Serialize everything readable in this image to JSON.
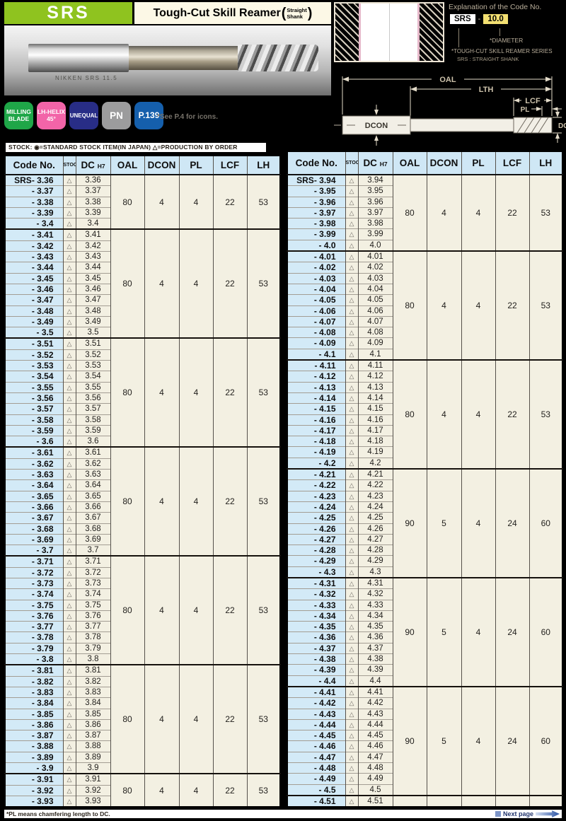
{
  "colors": {
    "brand_green": "#8fc31f",
    "table_header_blue": "#cfe7f5",
    "code_column_blue": "#d3eaf7",
    "row_cream": "#f3f0e2",
    "accent_blue": "#1560ab"
  },
  "header": {
    "series_code": "SRS",
    "title": "Tough-Cut Skill Reamer",
    "paren_open": "(",
    "paren_close": ")",
    "shank_line1": "Straight",
    "shank_line2": "Shank",
    "photo_etch_text": "NIKKEN  SRS  11.5"
  },
  "code_explanation": {
    "heading": "Explanation of the Code No.",
    "prefix_box": "SRS",
    "dash": "-",
    "value_box": "10.0",
    "diameter_note": "*DIAMETER",
    "series_note": "*TOUGH-CUT SKILL REAMER SERIES",
    "shank_note": "SRS : STRAIGHT SHANK"
  },
  "diagram": {
    "oal_label": "OAL",
    "lth_label": "LTH",
    "lcf_label": "LCF",
    "pl_label": "PL",
    "dc_label": "DC",
    "dcon_label": "DCON"
  },
  "badges": [
    {
      "name": "milling-blade",
      "lines": [
        "MILLING",
        "BLADE"
      ],
      "color": "#1fa648"
    },
    {
      "name": "lh-helix-45",
      "lines": [
        "LH-HELIX",
        "45°"
      ],
      "color": "#f264a8"
    },
    {
      "name": "unequal",
      "lines": [
        "UNEQUAL"
      ],
      "color": "#282d86"
    },
    {
      "name": "pn",
      "lines": [
        "PN"
      ],
      "color": "#9c9c9d"
    },
    {
      "name": "p139",
      "lines": [
        "P.139"
      ],
      "color": "#155fac"
    }
  ],
  "icons_note": "*See P.4 for icons.",
  "stock_legend": "STOCK: ◉=STANDARD STOCK ITEM(IN JAPAN)  △=PRODUCTION BY ORDER",
  "tables": {
    "columns": [
      "Code No.",
      "STOCK",
      "DC",
      "OAL",
      "DCON",
      "PL",
      "LCF",
      "LH"
    ],
    "dc_tolerance": "H7",
    "code_prefix_first": "SRS-",
    "code_prefix": "-",
    "stock_symbol": "△",
    "left": {
      "groups": [
        {
          "codes": [
            "3.36",
            "3.37",
            "3.38",
            "3.39",
            "3.4"
          ],
          "specs": [
            "80",
            "4",
            "4",
            "22",
            "53"
          ]
        },
        {
          "codes": [
            "3.41",
            "3.42",
            "3.43",
            "3.44",
            "3.45",
            "3.46",
            "3.47",
            "3.48",
            "3.49",
            "3.5"
          ],
          "specs": [
            "80",
            "4",
            "4",
            "22",
            "53"
          ]
        },
        {
          "codes": [
            "3.51",
            "3.52",
            "3.53",
            "3.54",
            "3.55",
            "3.56",
            "3.57",
            "3.58",
            "3.59",
            "3.6"
          ],
          "specs": [
            "80",
            "4",
            "4",
            "22",
            "53"
          ]
        },
        {
          "codes": [
            "3.61",
            "3.62",
            "3.63",
            "3.64",
            "3.65",
            "3.66",
            "3.67",
            "3.68",
            "3.69",
            "3.7"
          ],
          "specs": [
            "80",
            "4",
            "4",
            "22",
            "53"
          ]
        },
        {
          "codes": [
            "3.71",
            "3.72",
            "3.73",
            "3.74",
            "3.75",
            "3.76",
            "3.77",
            "3.78",
            "3.79",
            "3.8"
          ],
          "specs": [
            "80",
            "4",
            "4",
            "22",
            "53"
          ]
        },
        {
          "codes": [
            "3.81",
            "3.82",
            "3.83",
            "3.84",
            "3.85",
            "3.86",
            "3.87",
            "3.88",
            "3.89",
            "3.9"
          ],
          "specs": [
            "80",
            "4",
            "4",
            "22",
            "53"
          ]
        },
        {
          "codes": [
            "3.91",
            "3.92",
            "3.93"
          ],
          "specs": [
            "80",
            "4",
            "4",
            "22",
            "53"
          ]
        }
      ]
    },
    "right": {
      "groups": [
        {
          "codes": [
            "3.94",
            "3.95",
            "3.96",
            "3.97",
            "3.98",
            "3.99",
            "4.0"
          ],
          "specs": [
            "80",
            "4",
            "4",
            "22",
            "53"
          ]
        },
        {
          "codes": [
            "4.01",
            "4.02",
            "4.03",
            "4.04",
            "4.05",
            "4.06",
            "4.07",
            "4.08",
            "4.09",
            "4.1"
          ],
          "specs": [
            "80",
            "4",
            "4",
            "22",
            "53"
          ]
        },
        {
          "codes": [
            "4.11",
            "4.12",
            "4.13",
            "4.14",
            "4.15",
            "4.16",
            "4.17",
            "4.18",
            "4.19",
            "4.2"
          ],
          "specs": [
            "80",
            "4",
            "4",
            "22",
            "53"
          ]
        },
        {
          "codes": [
            "4.21",
            "4.22",
            "4.23",
            "4.24",
            "4.25",
            "4.26",
            "4.27",
            "4.28",
            "4.29",
            "4.3"
          ],
          "specs": [
            "90",
            "5",
            "4",
            "24",
            "60"
          ]
        },
        {
          "codes": [
            "4.31",
            "4.32",
            "4.33",
            "4.34",
            "4.35",
            "4.36",
            "4.37",
            "4.38",
            "4.39",
            "4.4"
          ],
          "specs": [
            "90",
            "5",
            "4",
            "24",
            "60"
          ]
        },
        {
          "codes": [
            "4.41",
            "4.42",
            "4.43",
            "4.44",
            "4.45",
            "4.46",
            "4.47",
            "4.48",
            "4.49",
            "4.5"
          ],
          "specs": [
            "90",
            "5",
            "4",
            "24",
            "60"
          ]
        },
        {
          "codes": [
            "4.51"
          ],
          "specs": null
        }
      ]
    }
  },
  "footer": {
    "pl_note": "*PL means chamfering length to DC.",
    "next_page_label": "Next page"
  }
}
